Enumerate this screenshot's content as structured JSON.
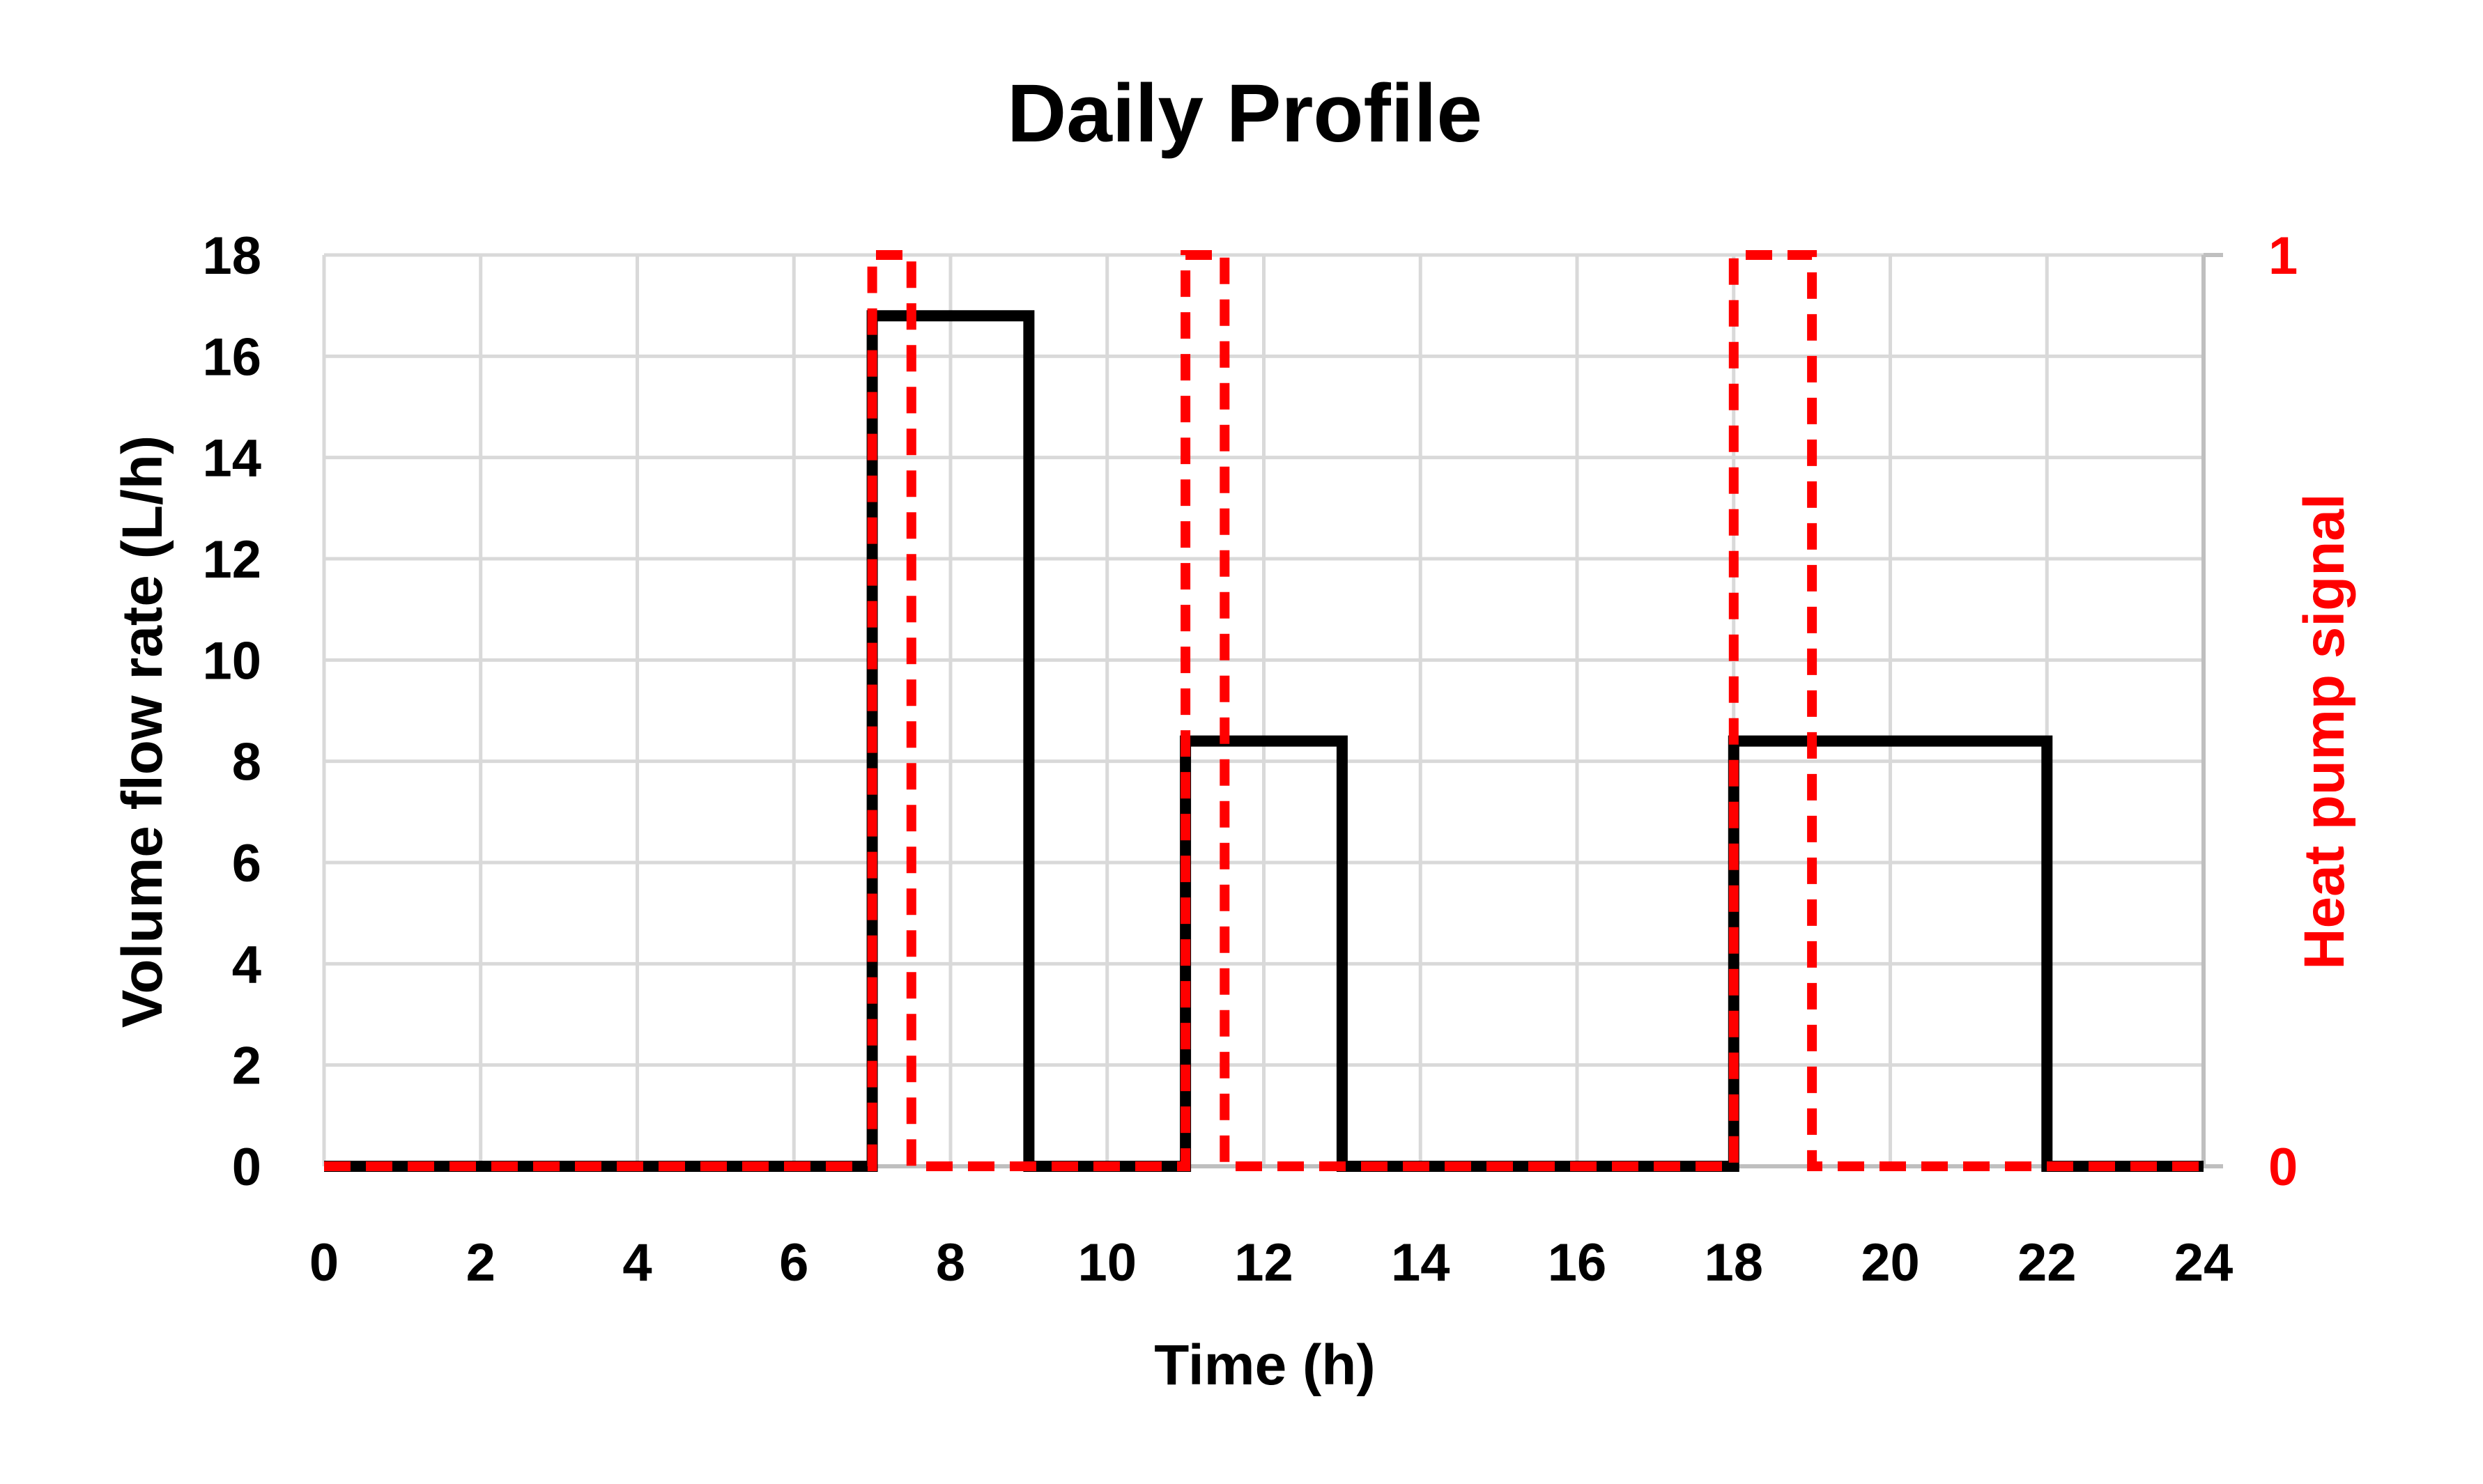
{
  "chart_data": {
    "type": "line",
    "title": "Daily Profile",
    "xlabel": "Time (h)",
    "ylabel": "Volume flow rate (L/h)",
    "y2label": "Heat pump signal",
    "xlim": [
      0,
      24
    ],
    "ylim": [
      0,
      18
    ],
    "y2lim": [
      0,
      1
    ],
    "x_ticks": [
      "0",
      "2",
      "4",
      "6",
      "8",
      "10",
      "12",
      "14",
      "16",
      "18",
      "20",
      "22",
      "24"
    ],
    "y_ticks": [
      "0",
      "2",
      "4",
      "6",
      "8",
      "10",
      "12",
      "14",
      "16",
      "18"
    ],
    "y2_ticks": [
      "0",
      "1"
    ],
    "grid": true,
    "series": [
      {
        "name": "Volume flow rate (L/h)",
        "axis": "left",
        "color": "#000000",
        "style": "solid",
        "x": [
          0,
          7,
          7,
          9,
          9,
          11,
          11,
          13,
          13,
          18,
          18,
          22,
          22,
          24
        ],
        "y": [
          0,
          0,
          16.8,
          16.8,
          0,
          0,
          8.4,
          8.4,
          0,
          0,
          8.4,
          8.4,
          0,
          0
        ]
      },
      {
        "name": "Heat pump signal",
        "axis": "right",
        "color": "#ff0000",
        "style": "dashed",
        "x": [
          0,
          7,
          7,
          7.5,
          7.5,
          11,
          11,
          11.5,
          11.5,
          18,
          18,
          19,
          19,
          24
        ],
        "y": [
          0,
          0,
          1,
          1,
          0,
          0,
          1,
          1,
          0,
          0,
          1,
          1,
          0,
          0
        ]
      }
    ]
  }
}
